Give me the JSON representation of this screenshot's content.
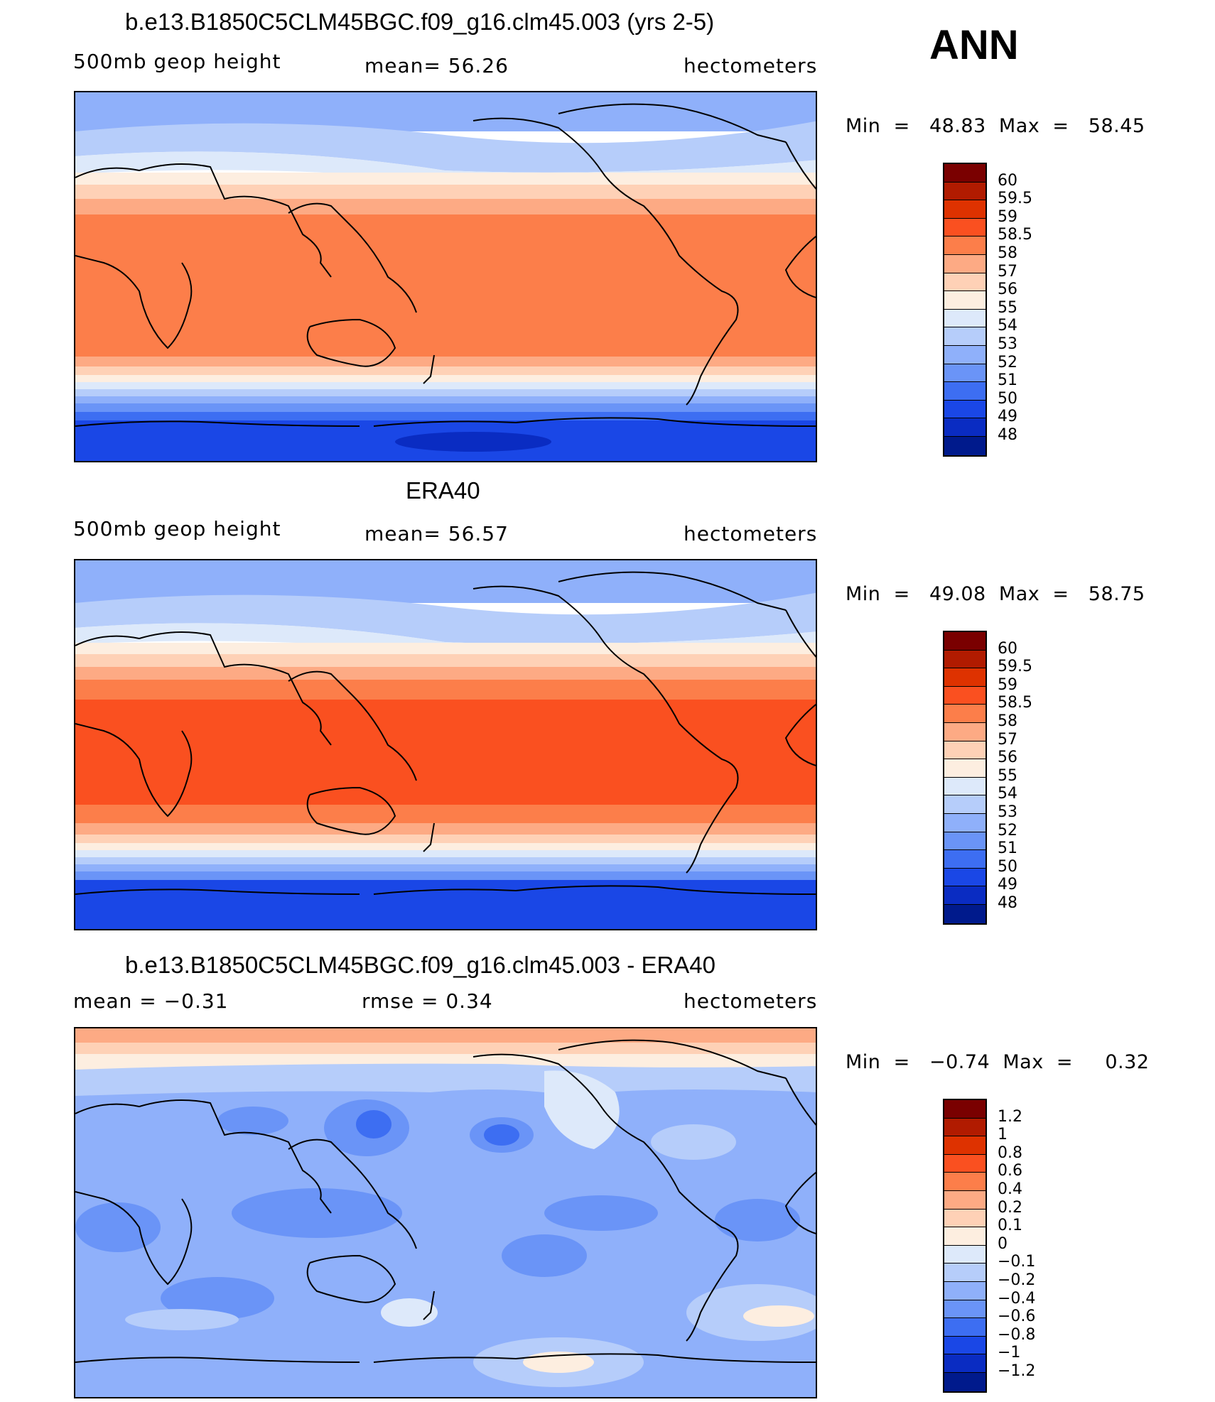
{
  "season": "ANN",
  "panels": [
    {
      "title": "b.e13.B1850C5CLM45BGC.f09_g16.clm45.003 (yrs 2-5)",
      "left_label": "500mb  geop  height",
      "center_label": "mean=   56.26",
      "right_label": "hectometers",
      "stats": "Min  =   48.83  Max  =   58.45"
    },
    {
      "title": "ERA40",
      "left_label": "500mb  geop  height",
      "center_label": "mean=   56.57",
      "right_label": "hectometers",
      "stats": "Min  =   49.08  Max  =   58.75"
    },
    {
      "title": "b.e13.B1850C5CLM45BGC.f09_g16.clm45.003 - ERA40",
      "left_label": "mean  =    −0.31",
      "center_label": "rmse  =     0.34",
      "right_label": "hectometers",
      "stats": "Min  =   −0.74  Max  =     0.32"
    }
  ],
  "colorbar_levels_abs": [
    "60",
    "59.5",
    "59",
    "58.5",
    "58",
    "57",
    "56",
    "55",
    "54",
    "53",
    "52",
    "51",
    "50",
    "49",
    "48"
  ],
  "colorbar_levels_diff": [
    "1.2",
    "1",
    "0.8",
    "0.6",
    "0.4",
    "0.2",
    "0.1",
    "0",
    "−0.1",
    "−0.2",
    "−0.4",
    "−0.6",
    "−0.8",
    "−1",
    "−1.2"
  ],
  "colorbar_colors": [
    "#7a0000",
    "#b11b00",
    "#de3200",
    "#fa5020",
    "#fc7e4a",
    "#fdaa84",
    "#fed1b6",
    "#fdeee0",
    "#dde9fa",
    "#b6cdfa",
    "#8fb0fa",
    "#6a94f7",
    "#3d6ef2",
    "#1a47e6",
    "#0a2cc2",
    "#001a8c"
  ]
}
